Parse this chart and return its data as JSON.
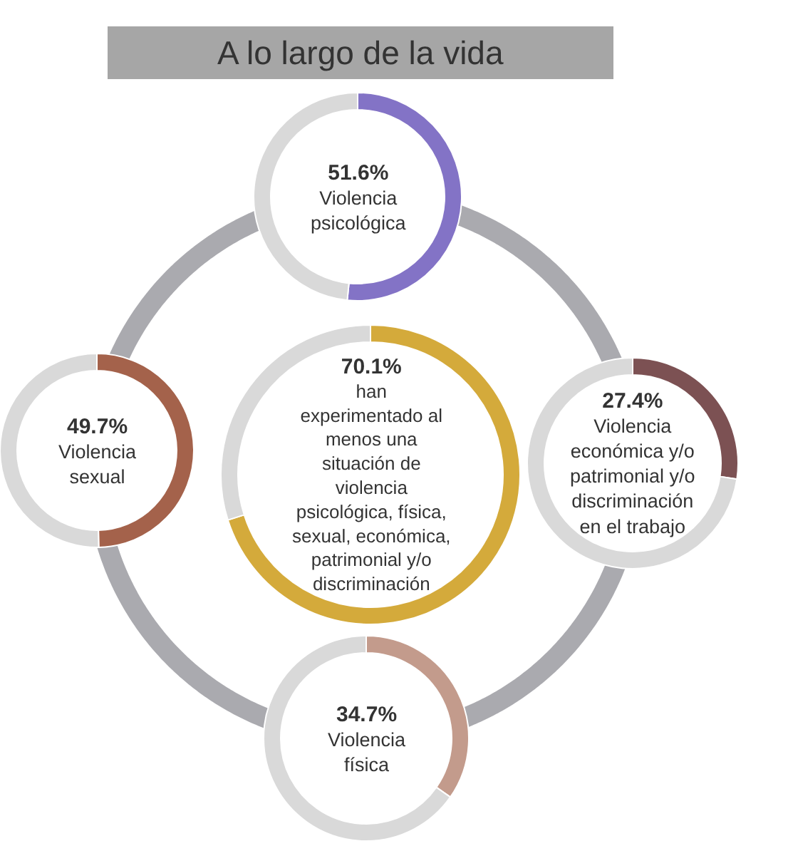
{
  "chart_data": [
    {
      "type": "donut",
      "title": "A lo largo de la vida",
      "categories": [
        "Violencia\npsicológica",
        null
      ],
      "values": [
        51.6,
        48.4
      ],
      "colors": [
        "#8373c6",
        "#d9d9d9"
      ],
      "value_labels": [
        "51.6%",
        null
      ]
    },
    {
      "type": "donut",
      "categories": [
        "Violencia\nsexual",
        null
      ],
      "values": [
        49.7,
        50.3
      ],
      "colors": [
        "#a4624b",
        "#d9d9d9"
      ],
      "value_labels": [
        "49.7%",
        null
      ]
    },
    {
      "type": "donut",
      "categories": [
        "han\nexperimentado al\nmenos una\nsituación de\nviolencia\npsicológica, física,\nsexual, económica,\npatrimonial y/o\ndiscriminación",
        null
      ],
      "values": [
        70.1,
        29.9
      ],
      "colors": [
        "#d4aa3b",
        "#d9d9d9"
      ],
      "value_labels": [
        "70.1%",
        null
      ]
    },
    {
      "type": "donut",
      "categories": [
        "Violencia\neconómica y/o\npatrimonial y/o\ndiscriminación\nen el trabajo",
        null
      ],
      "values": [
        27.4,
        72.6
      ],
      "colors": [
        "#7c5153",
        "#d9d9d9"
      ],
      "value_labels": [
        "27.4%",
        null
      ]
    },
    {
      "type": "donut",
      "categories": [
        "Violencia\nfísica",
        null
      ],
      "values": [
        34.7,
        65.3
      ],
      "colors": [
        "#c39b8c",
        "#d9d9d9"
      ],
      "value_labels": [
        "34.7%",
        null
      ]
    }
  ]
}
